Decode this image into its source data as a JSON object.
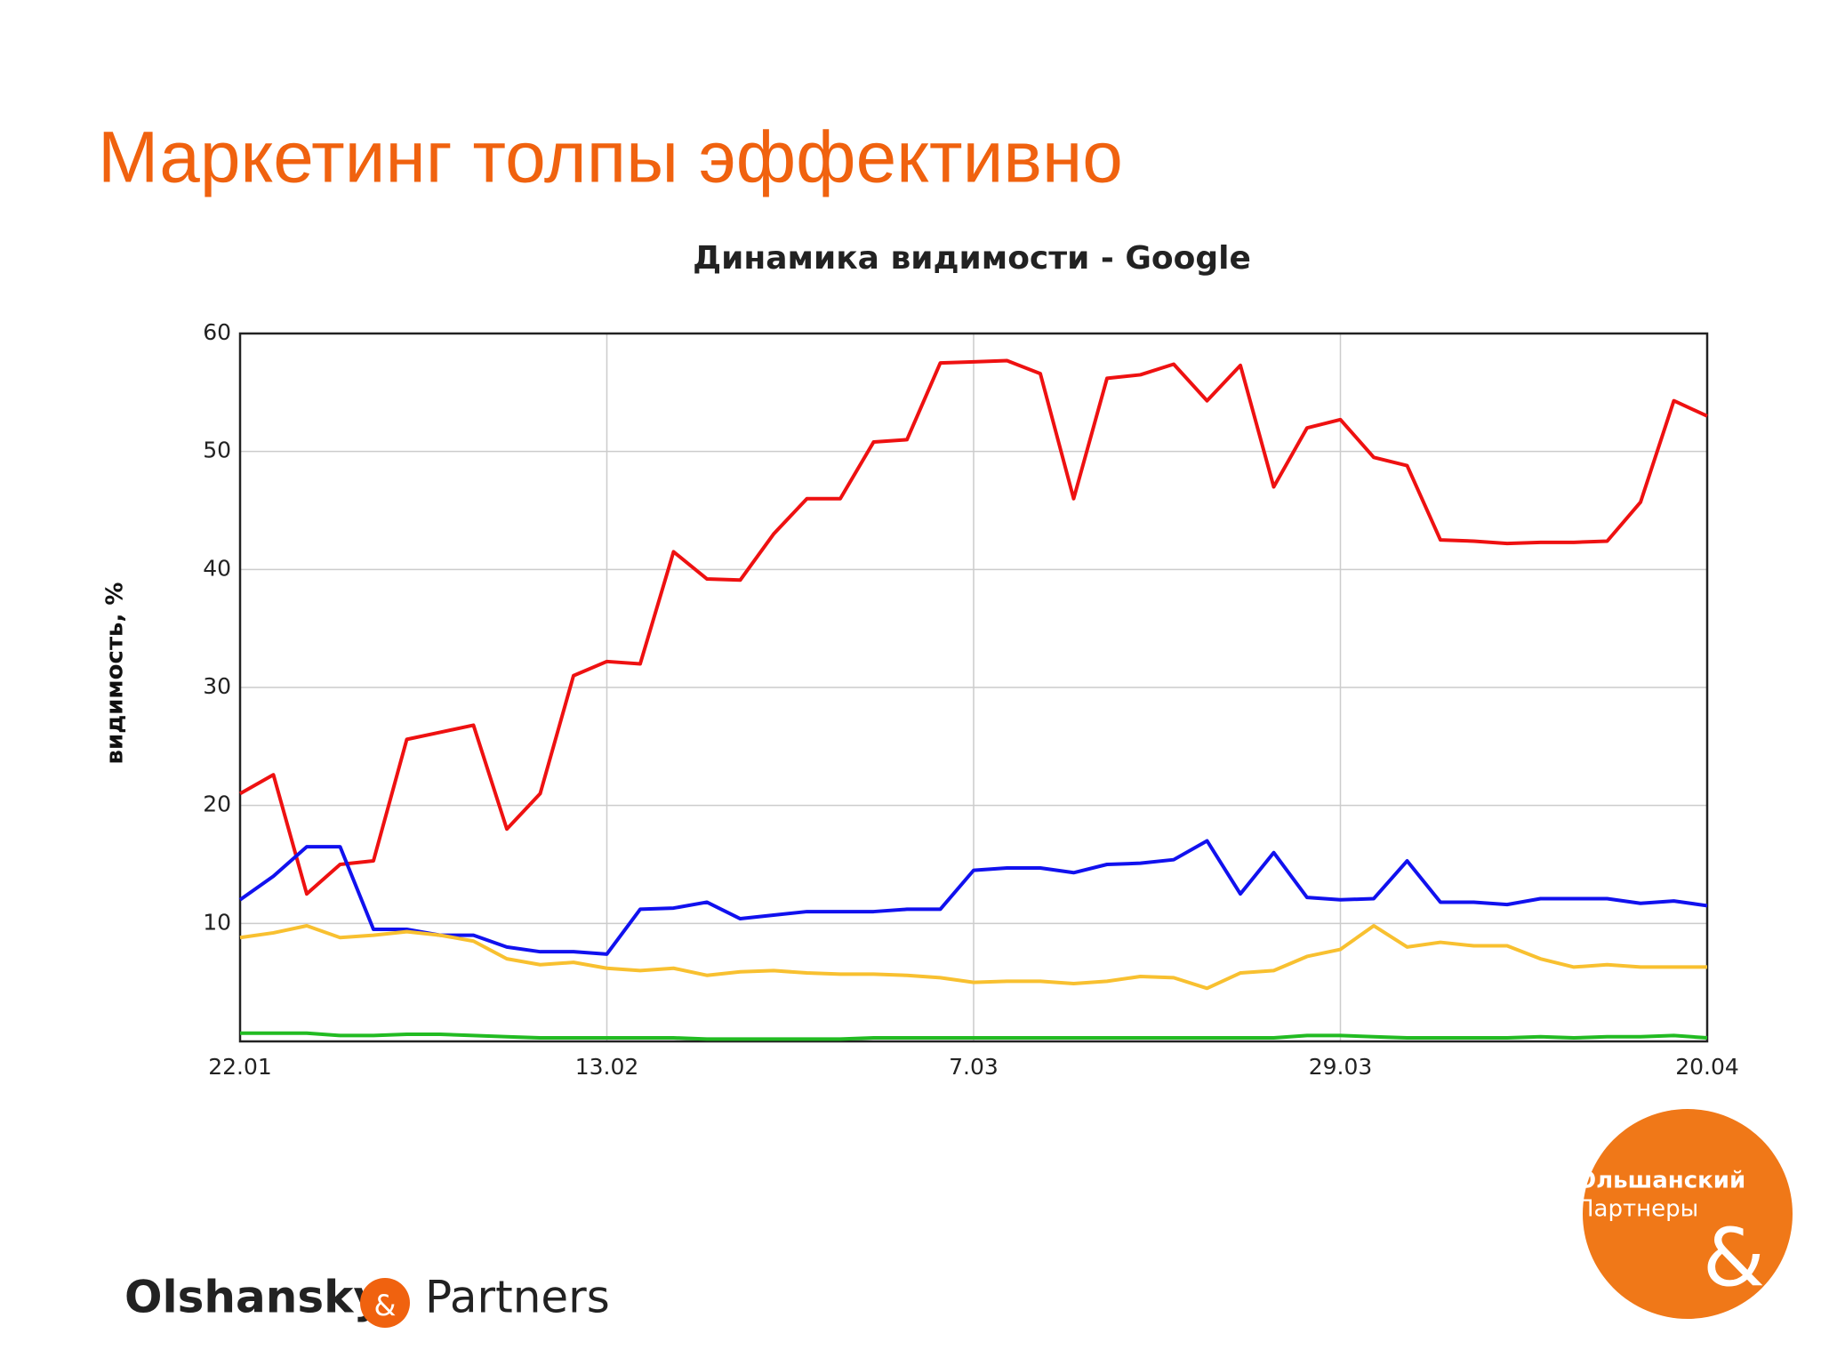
{
  "slide_title": "Маркетинг толпы эффективно",
  "chart_data": {
    "type": "line",
    "title": "Динамика видимости - Google",
    "y_label": "видимость, %",
    "categories": [
      "22.01",
      null,
      null,
      null,
      null,
      null,
      null,
      null,
      null,
      null,
      null,
      "13.02",
      null,
      null,
      null,
      null,
      null,
      null,
      null,
      null,
      null,
      null,
      "7.03",
      null,
      null,
      null,
      null,
      null,
      null,
      null,
      null,
      null,
      null,
      "29.03",
      null,
      null,
      null,
      null,
      null,
      null,
      null,
      null,
      null,
      null,
      "20.04"
    ],
    "series": [
      {
        "color": "#ee1111",
        "values": [
          21,
          22.6,
          12.5,
          15,
          15.3,
          25.6,
          26.2,
          26.8,
          18,
          21,
          31,
          32.2,
          32,
          41.5,
          39.2,
          39.1,
          43,
          46,
          46,
          50.8,
          51,
          57.5,
          57.6,
          57.7,
          56.6,
          46,
          56.2,
          56.5,
          57.4,
          54.3,
          57.3,
          47,
          52,
          52.7,
          49.5,
          48.8,
          42.5,
          42.4,
          42.2,
          42.3,
          42.3,
          42.4,
          45.7,
          54.3,
          53
        ]
      },
      {
        "color": "#1111ee",
        "values": [
          12,
          14,
          16.5,
          16.5,
          9.5,
          9.5,
          9,
          9,
          8,
          7.6,
          7.6,
          7.4,
          11.2,
          11.3,
          11.8,
          10.4,
          10.7,
          11,
          11,
          11,
          11.2,
          11.2,
          14.5,
          14.7,
          14.7,
          14.3,
          15,
          15.1,
          15.4,
          17,
          12.5,
          16,
          12.2,
          12,
          12.1,
          15.3,
          11.8,
          11.8,
          11.6,
          12.1,
          12.1,
          12.1,
          11.7,
          11.9,
          11.5
        ]
      },
      {
        "color": "#f8c030",
        "values": [
          8.8,
          9.2,
          9.8,
          8.8,
          9,
          9.3,
          9,
          8.5,
          7,
          6.5,
          6.7,
          6.2,
          6,
          6.2,
          5.6,
          5.9,
          6,
          5.8,
          5.7,
          5.7,
          5.6,
          5.4,
          5,
          5.1,
          5.1,
          4.9,
          5.1,
          5.5,
          5.4,
          4.5,
          5.8,
          6,
          7.2,
          7.8,
          9.8,
          8,
          8.4,
          8.1,
          8.1,
          7,
          6.3,
          6.5,
          6.3,
          6.3,
          6.3
        ]
      },
      {
        "color": "#22bb22",
        "values": [
          0.7,
          0.7,
          0.7,
          0.5,
          0.5,
          0.6,
          0.6,
          0.5,
          0.4,
          0.3,
          0.3,
          0.3,
          0.3,
          0.3,
          0.2,
          0.2,
          0.2,
          0.2,
          0.2,
          0.3,
          0.3,
          0.3,
          0.3,
          0.3,
          0.3,
          0.3,
          0.3,
          0.3,
          0.3,
          0.3,
          0.3,
          0.3,
          0.5,
          0.5,
          0.4,
          0.3,
          0.3,
          0.3,
          0.3,
          0.4,
          0.3,
          0.4,
          0.4,
          0.5,
          0.3
        ]
      }
    ],
    "ylim": [
      0,
      60
    ],
    "yticks": [
      10,
      20,
      30,
      40,
      50,
      60
    ],
    "grid": true
  },
  "footer": {
    "left": "Olshansky",
    "amp": "&",
    "right": "Partners"
  },
  "badge": {
    "line1": "Ольшанский",
    "line2": "Партнеры",
    "amp": "&"
  }
}
